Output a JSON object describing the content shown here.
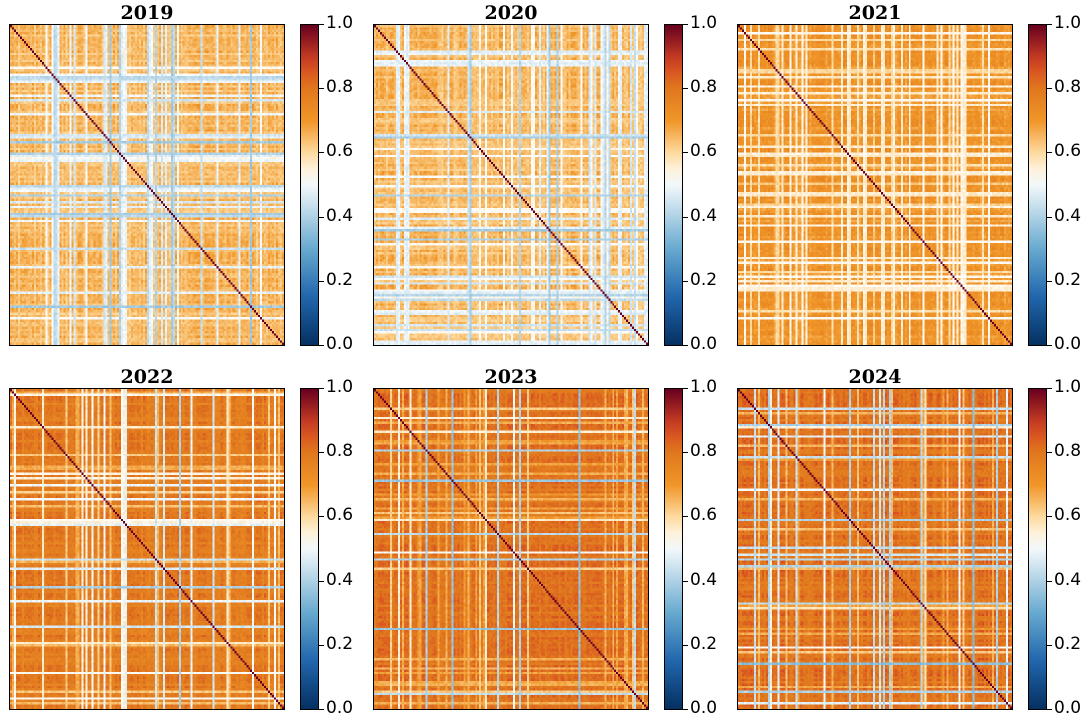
{
  "chart_data": [
    {
      "type": "heatmap",
      "title": "2019",
      "colormap": "diverging-blue-white-red",
      "vmin": 0.0,
      "vmax": 1.0,
      "colorbar_ticks": [
        "0.0",
        "0.2",
        "0.4",
        "0.6",
        "0.8",
        "1.0"
      ],
      "diagonal_value": 1.0,
      "typical_value": 0.66,
      "value_range": [
        0.38,
        0.78
      ],
      "xlabel": "",
      "ylabel": ""
    },
    {
      "type": "heatmap",
      "title": "2020",
      "colormap": "diverging-blue-white-red",
      "vmin": 0.0,
      "vmax": 1.0,
      "colorbar_ticks": [
        "0.0",
        "0.2",
        "0.4",
        "0.6",
        "0.8",
        "1.0"
      ],
      "diagonal_value": 1.0,
      "typical_value": 0.66,
      "value_range": [
        0.38,
        0.78
      ],
      "xlabel": "",
      "ylabel": ""
    },
    {
      "type": "heatmap",
      "title": "2021",
      "colormap": "diverging-blue-white-red",
      "vmin": 0.0,
      "vmax": 1.0,
      "colorbar_ticks": [
        "0.0",
        "0.2",
        "0.4",
        "0.6",
        "0.8",
        "1.0"
      ],
      "diagonal_value": 1.0,
      "typical_value": 0.72,
      "value_range": [
        0.55,
        0.82
      ],
      "xlabel": "",
      "ylabel": ""
    },
    {
      "type": "heatmap",
      "title": "2022",
      "colormap": "diverging-blue-white-red",
      "vmin": 0.0,
      "vmax": 1.0,
      "colorbar_ticks": [
        "0.0",
        "0.2",
        "0.4",
        "0.6",
        "0.8",
        "1.0"
      ],
      "diagonal_value": 1.0,
      "typical_value": 0.8,
      "value_range": [
        0.4,
        0.88
      ],
      "xlabel": "",
      "ylabel": ""
    },
    {
      "type": "heatmap",
      "title": "2023",
      "colormap": "diverging-blue-white-red",
      "vmin": 0.0,
      "vmax": 1.0,
      "colorbar_ticks": [
        "0.0",
        "0.2",
        "0.4",
        "0.6",
        "0.8",
        "1.0"
      ],
      "diagonal_value": 1.0,
      "typical_value": 0.82,
      "value_range": [
        0.35,
        0.9
      ],
      "xlabel": "",
      "ylabel": ""
    },
    {
      "type": "heatmap",
      "title": "2024",
      "colormap": "diverging-blue-white-red",
      "vmin": 0.0,
      "vmax": 1.0,
      "colorbar_ticks": [
        "0.0",
        "0.2",
        "0.4",
        "0.6",
        "0.8",
        "1.0"
      ],
      "diagonal_value": 1.0,
      "typical_value": 0.82,
      "value_range": [
        0.35,
        0.9
      ],
      "xlabel": "",
      "ylabel": ""
    }
  ]
}
